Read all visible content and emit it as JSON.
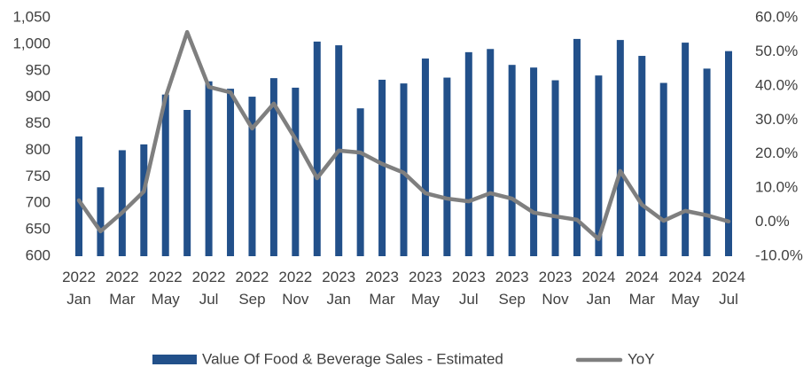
{
  "chart_data": {
    "type": "bar",
    "categories": [
      "2022 Jan",
      null,
      "2022 Mar",
      null,
      "2022 May",
      null,
      "2022 Jul",
      null,
      "2022 Sep",
      null,
      "2022 Nov",
      null,
      "2023 Jan",
      null,
      "2023 Mar",
      null,
      "2023 May",
      null,
      "2023 Jul",
      null,
      "2023 Sep",
      null,
      "2023 Nov",
      null,
      "2024 Jan",
      null,
      "2024 Mar",
      null,
      "2024 May",
      null,
      "2024 Jul"
    ],
    "series": [
      {
        "name": "Value Of Food & Beverage Sales - Estimated",
        "type": "bar",
        "color": "#22508a",
        "values": [
          826,
          730,
          800,
          811,
          905,
          876,
          930,
          916,
          901,
          936,
          918,
          1005,
          998,
          879,
          933,
          926,
          973,
          937,
          985,
          991,
          961,
          956,
          932,
          1010,
          941,
          1008,
          978,
          927,
          1003,
          954,
          987
        ]
      },
      {
        "name": "YoY",
        "type": "line",
        "axis": "y2",
        "color": "#7f7f7f",
        "values": [
          6.4,
          -2.7,
          2.8,
          9,
          36.6,
          55.8,
          39.7,
          38.1,
          27.5,
          34.8,
          24.4,
          12.9,
          21,
          20.4,
          17.1,
          14.5,
          8.5,
          6.9,
          6.1,
          8.5,
          6.9,
          2.8,
          1.7,
          0.7,
          -5,
          15,
          5.1,
          0.4,
          3.3,
          2,
          0.2
        ]
      }
    ],
    "ylim": [
      600,
      1050
    ],
    "yticks": [
      600,
      650,
      700,
      750,
      800,
      850,
      900,
      950,
      {
        "value": 1000,
        "label": "1,000"
      },
      {
        "value": 1050,
        "label": "1,050"
      }
    ],
    "y2lim": [
      -10,
      60
    ],
    "y2ticks": [
      {
        "value": -10,
        "label": "-10.0%"
      },
      {
        "value": 0,
        "label": "0.0%"
      },
      {
        "value": 10,
        "label": "10.0%"
      },
      {
        "value": 20,
        "label": "20.0%"
      },
      {
        "value": 30,
        "label": "30.0%"
      },
      {
        "value": 40,
        "label": "40.0%"
      },
      {
        "value": 50,
        "label": "50.0%"
      },
      {
        "value": 60,
        "label": "60.0%"
      }
    ],
    "grid": false,
    "legend": "bottom"
  }
}
